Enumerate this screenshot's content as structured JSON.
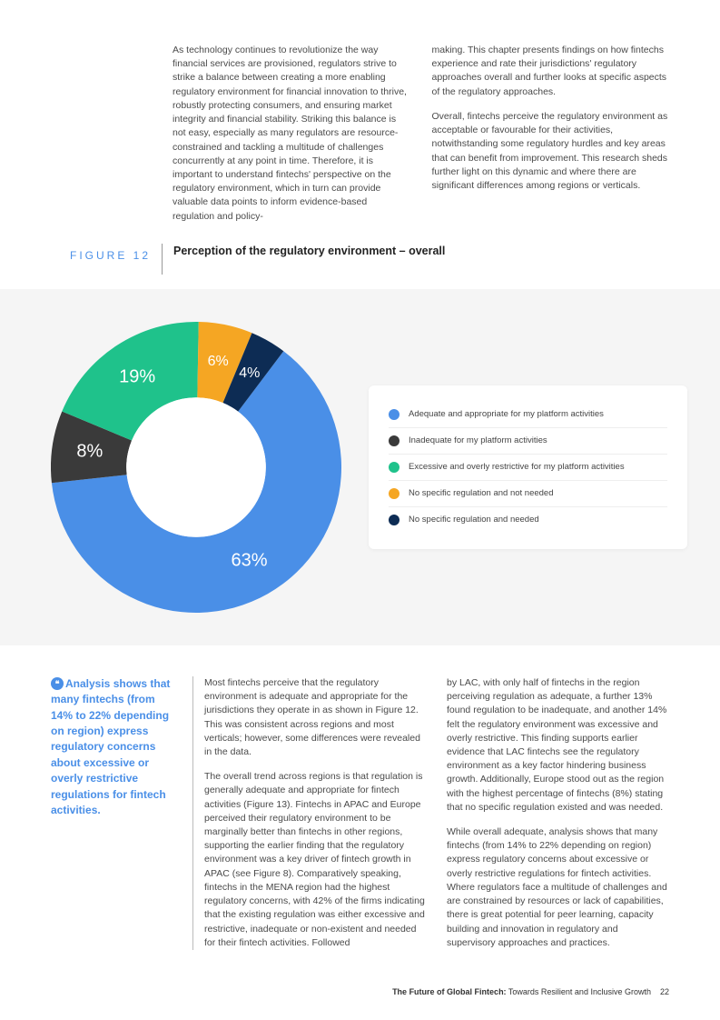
{
  "intro": {
    "col1": "As technology continues to revolutionize the way financial services are provisioned, regulators strive to strike a balance between creating a more enabling regulatory environment for financial innovation to thrive, robustly protecting consumers, and ensuring market integrity and financial stability. Striking this balance is not easy, especially as many regulators are resource-constrained and tackling a multitude of challenges concurrently at any point in time. Therefore, it is important to understand fintechs' perspective on the regulatory environment, which in turn can provide valuable data points to inform evidence-based regulation and policy-",
    "col2_p1": "making. This chapter presents findings on how fintechs experience and rate their jurisdictions' regulatory approaches overall and further looks at specific aspects of the regulatory approaches.",
    "col2_p2": "Overall, fintechs perceive the regulatory environment as acceptable or favourable for their activities, notwithstanding some regulatory hurdles and key areas that can benefit from improvement. This research sheds further light on this dynamic and where there are significant differences among regions or verticals."
  },
  "figure": {
    "label": "FIGURE 12",
    "title": "Perception of the regulatory environment – overall"
  },
  "chart": {
    "type": "donut",
    "background_color": "#f5f5f5",
    "inner_radius_ratio": 0.48,
    "slices": [
      {
        "label": "Adequate and appropriate for my platform activities",
        "value": 63,
        "pct": "63%",
        "color": "#4a8fe7"
      },
      {
        "label": "Inadequate for my platform activities",
        "value": 8,
        "pct": "8%",
        "color": "#3a3a3a"
      },
      {
        "label": "Excessive and overly restrictive for my platform activities",
        "value": 19,
        "pct": "19%",
        "color": "#1fc28b"
      },
      {
        "label": "No specific regulation and not needed",
        "value": 6,
        "pct": "6%",
        "color": "#f5a623"
      },
      {
        "label": "No specific regulation and needed",
        "value": 4,
        "pct": "4%",
        "color": "#0d2c54"
      }
    ],
    "label_fontsize": 20,
    "label_color": "#ffffff",
    "legend_fontsize": 9.5,
    "start_angle_deg": -53
  },
  "callout": {
    "icon": "❝",
    "text": "Analysis shows that many fintechs (from 14% to 22% depending on region) express regulatory concerns about excessive or overly restrictive regulations for fintech activities."
  },
  "body": {
    "col1_p1": "Most fintechs perceive that the regulatory environment is adequate and appropriate for the jurisdictions they operate in as shown in Figure 12. This was consistent across regions and most verticals; however, some differences were revealed in the data.",
    "col1_p2": "The overall trend across regions is that regulation is generally adequate and appropriate for fintech activities (Figure 13). Fintechs in APAC and Europe perceived their regulatory environment to be marginally better than fintechs in other regions, supporting the earlier finding that the regulatory environment was a key driver of fintech growth in APAC (see Figure 8). Comparatively speaking, fintechs in the MENA region had the highest regulatory concerns, with 42% of the firms indicating that the existing regulation was either excessive and restrictive, inadequate or non-existent and needed for their fintech activities. Followed",
    "col2_p1": "by LAC, with only half of fintechs in the region perceiving regulation as adequate, a further 13% found regulation to be inadequate, and another 14% felt the regulatory environment was excessive and overly restrictive. This finding supports earlier evidence that LAC fintechs see the regulatory environment as a key factor hindering business growth. Additionally, Europe stood out as the region with the highest percentage of fintechs (8%) stating that no specific regulation existed and was needed.",
    "col2_p2": "While overall adequate, analysis shows that many fintechs (from 14% to 22% depending on region) express regulatory concerns about excessive or overly restrictive regulations for fintech activities. Where regulators face a multitude of challenges and are constrained by resources or lack of capabilities, there is great potential for peer learning, capacity building and innovation in regulatory and supervisory approaches and practices."
  },
  "footer": {
    "bold": "The Future of Global Fintech:",
    "rest": " Towards Resilient and Inclusive Growth",
    "page": "22"
  }
}
